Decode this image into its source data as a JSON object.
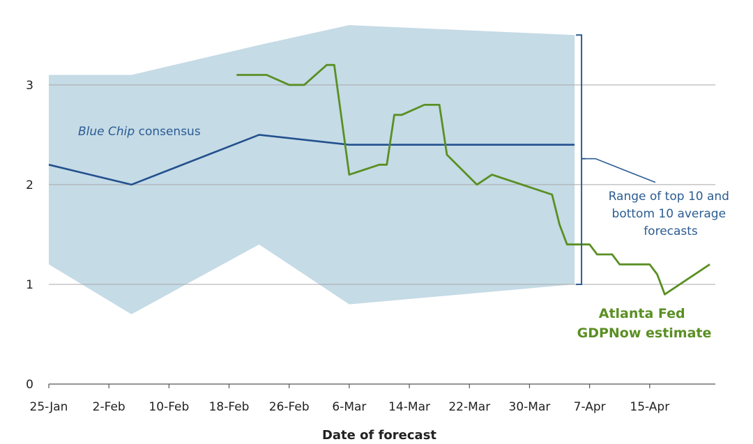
{
  "chart_data": {
    "type": "line",
    "xlabel": "Date of forecast",
    "ylabel": "",
    "ylim": [
      0,
      3.6
    ],
    "yticks": [
      0,
      1,
      2,
      3
    ],
    "xlim": [
      "2025-01-25",
      "2025-04-23"
    ],
    "xtick_labels": [
      "25-Jan",
      "2-Feb",
      "10-Feb",
      "18-Feb",
      "26-Feb",
      "6-Mar",
      "14-Mar",
      "22-Mar",
      "30-Mar",
      "7-Apr",
      "15-Apr"
    ],
    "xtick_dates": [
      "2025-01-25",
      "2025-02-02",
      "2025-02-10",
      "2025-02-18",
      "2025-02-26",
      "2025-03-06",
      "2025-03-14",
      "2025-03-22",
      "2025-03-30",
      "2025-04-07",
      "2025-04-15"
    ],
    "grid": "horizontal",
    "colors": {
      "range_band": "#c5dbe6",
      "blue_chip": "#23508e",
      "gdpnow": "#5a8f23",
      "bracket": "#2b5c93",
      "grid": "#a8a8a8",
      "axis": "#555555"
    },
    "range_band": {
      "name": "Range of top 10 and bottom 10 average forecasts",
      "upper": [
        [
          "2025-01-25",
          3.1
        ],
        [
          "2025-02-05",
          3.1
        ],
        [
          "2025-02-22",
          3.4
        ],
        [
          "2025-03-06",
          3.6
        ],
        [
          "2025-04-05",
          3.5
        ]
      ],
      "lower": [
        [
          "2025-04-05",
          1.0
        ],
        [
          "2025-03-06",
          0.8
        ],
        [
          "2025-02-22",
          1.4
        ],
        [
          "2025-02-05",
          0.7
        ],
        [
          "2025-01-25",
          1.2
        ]
      ]
    },
    "series": [
      {
        "name": "Blue Chip consensus",
        "points": [
          [
            "2025-01-25",
            2.2
          ],
          [
            "2025-02-05",
            2.0
          ],
          [
            "2025-02-22",
            2.5
          ],
          [
            "2025-03-06",
            2.4
          ],
          [
            "2025-04-05",
            2.4
          ]
        ]
      },
      {
        "name": "Atlanta Fed GDPNow estimate",
        "points": [
          [
            "2025-02-19",
            3.1
          ],
          [
            "2025-02-22",
            3.1
          ],
          [
            "2025-02-23",
            3.1
          ],
          [
            "2025-02-26",
            3.0
          ],
          [
            "2025-02-28",
            3.0
          ],
          [
            "2025-03-03",
            3.2
          ],
          [
            "2025-03-04",
            3.2
          ],
          [
            "2025-03-06",
            2.1
          ],
          [
            "2025-03-10",
            2.2
          ],
          [
            "2025-03-11",
            2.2
          ],
          [
            "2025-03-12",
            2.7
          ],
          [
            "2025-03-13",
            2.7
          ],
          [
            "2025-03-16",
            2.8
          ],
          [
            "2025-03-18",
            2.8
          ],
          [
            "2025-03-19",
            2.3
          ],
          [
            "2025-03-23",
            2.0
          ],
          [
            "2025-03-25",
            2.1
          ],
          [
            "2025-04-02",
            1.9
          ],
          [
            "2025-04-03",
            1.6
          ],
          [
            "2025-04-04",
            1.4
          ],
          [
            "2025-04-07",
            1.4
          ],
          [
            "2025-04-08",
            1.3
          ],
          [
            "2025-04-10",
            1.3
          ],
          [
            "2025-04-11",
            1.2
          ],
          [
            "2025-04-15",
            1.2
          ],
          [
            "2025-04-16",
            1.1
          ],
          [
            "2025-04-17",
            0.9
          ],
          [
            "2025-04-23",
            1.2
          ]
        ]
      }
    ],
    "annotations": {
      "blue_chip_label_italic": "Blue Chip",
      "blue_chip_label_rest": " consensus",
      "range_label_lines": [
        "Range of top 10 and",
        "bottom 10 average",
        "forecasts"
      ],
      "gdpnow_label_lines": [
        "Atlanta Fed",
        "GDPNow estimate"
      ]
    }
  }
}
